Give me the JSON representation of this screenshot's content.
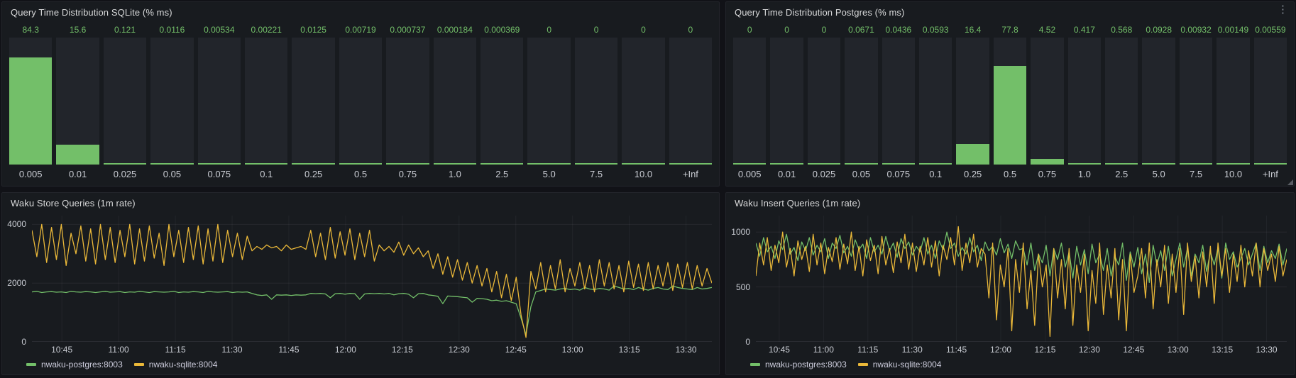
{
  "theme": {
    "dashboard_bg": "#111217",
    "panel_bg": "#181b1f",
    "bar_bg": "#22252b",
    "accent_green": "#73bf69",
    "accent_yellow": "#eab839",
    "title_text": "#d8d9da",
    "axis_text": "#c9ccd3"
  },
  "chart_data": [
    {
      "type": "bar",
      "title": "Query Time Distribution SQLite (% ms)",
      "xlabel": "",
      "ylabel": "",
      "ylim": [
        0,
        100
      ],
      "grid": false,
      "categories": [
        "0.005",
        "0.01",
        "0.025",
        "0.05",
        "0.075",
        "0.1",
        "0.25",
        "0.5",
        "0.75",
        "1.0",
        "2.5",
        "5.0",
        "7.5",
        "10.0",
        "+Inf"
      ],
      "values": [
        84.3,
        15.6,
        0.121,
        0.0116,
        0.00534,
        0.00221,
        0.0125,
        0.00719,
        0.000737,
        0.000184,
        0.000369,
        0,
        0,
        0,
        0
      ],
      "value_labels": [
        "84.3",
        "15.6",
        "0.121",
        "0.0116",
        "0.00534",
        "0.00221",
        "0.0125",
        "0.00719",
        "0.000737",
        "0.000184",
        "0.000369",
        "0",
        "0",
        "0",
        "0"
      ],
      "bar_color": "#73bf69"
    },
    {
      "type": "bar",
      "title": "Query Time Distribution Postgres (% ms)",
      "xlabel": "",
      "ylabel": "",
      "ylim": [
        0,
        100
      ],
      "grid": false,
      "categories": [
        "0.005",
        "0.01",
        "0.025",
        "0.05",
        "0.075",
        "0.1",
        "0.25",
        "0.5",
        "0.75",
        "1.0",
        "2.5",
        "5.0",
        "7.5",
        "10.0",
        "+Inf"
      ],
      "values": [
        0,
        0,
        0,
        0.0671,
        0.0436,
        0.0593,
        16.4,
        77.8,
        4.52,
        0.417,
        0.568,
        0.0928,
        0.00932,
        0.00149,
        0.00559
      ],
      "value_labels": [
        "0",
        "0",
        "0",
        "0.0671",
        "0.0436",
        "0.0593",
        "16.4",
        "77.8",
        "4.52",
        "0.417",
        "0.568",
        "0.0928",
        "0.00932",
        "0.00149",
        "0.00559"
      ],
      "bar_color": "#73bf69"
    },
    {
      "type": "line",
      "title": "Waku Store Queries (1m rate)",
      "xlabel": "",
      "ylabel": "",
      "ylim": [
        0,
        4300
      ],
      "yticks": [
        0,
        2000,
        4000
      ],
      "ytick_labels": [
        "0",
        "2000",
        "4000"
      ],
      "xticks": [
        "10:45",
        "11:00",
        "11:15",
        "11:30",
        "11:45",
        "12:00",
        "12:15",
        "12:30",
        "12:45",
        "13:00",
        "13:15",
        "13:30"
      ],
      "grid": true,
      "legend_position": "bottom-left",
      "series": [
        {
          "name": "nwaku-postgres:8003",
          "color": "#73bf69",
          "values": [
            1700,
            1720,
            1680,
            1700,
            1710,
            1690,
            1700,
            1680,
            1720,
            1700,
            1690,
            1710,
            1700,
            1680,
            1700,
            1720,
            1690,
            1700,
            1710,
            1680,
            1700,
            1690,
            1720,
            1700,
            1680,
            1710,
            1700,
            1690,
            1700,
            1720,
            1680,
            1700,
            1690,
            1710,
            1700,
            1680,
            1720,
            1700,
            1690,
            1700,
            1710,
            1680,
            1700,
            1690,
            1700,
            1650,
            1600,
            1580,
            1600,
            1450,
            1600,
            1590,
            1600,
            1580,
            1600,
            1590,
            1600,
            1650,
            1640,
            1650,
            1630,
            1500,
            1640,
            1650,
            1620,
            1650,
            1640,
            1450,
            1630,
            1650,
            1640,
            1650,
            1630,
            1650,
            1600,
            1640,
            1650,
            1620,
            1500,
            1640,
            1650,
            1600,
            1580,
            1550,
            1300,
            1560,
            1550,
            1540,
            1520,
            1500,
            1350,
            1480,
            1470,
            1450,
            1400,
            1420,
            1380,
            1400,
            1350,
            1300,
            800,
            250,
            1200,
            1700,
            1750,
            1800,
            1780,
            1760,
            1800,
            1820,
            1780,
            1800,
            1760,
            1850,
            1800,
            1780,
            1820,
            1800,
            1760,
            1900,
            1850,
            1800,
            1820,
            1780,
            1850,
            1800,
            1760,
            1820,
            1850,
            1800,
            1780,
            1900,
            1850,
            1820,
            1800,
            1780,
            1850,
            1800,
            1820,
            1850
          ]
        },
        {
          "name": "nwaku-sqlite:8004",
          "color": "#eab839",
          "values": [
            3800,
            2900,
            4000,
            2700,
            3900,
            2800,
            4000,
            2600,
            3700,
            3000,
            3950,
            2750,
            3850,
            2650,
            4000,
            2800,
            3900,
            2700,
            3800,
            2900,
            4000,
            2650,
            3850,
            2750,
            3950,
            2850,
            3700,
            2600,
            4000,
            2900,
            3800,
            2700,
            3900,
            2800,
            3950,
            2650,
            3850,
            2750,
            4000,
            2700,
            3800,
            2900,
            3700,
            2800,
            3600,
            3100,
            3250,
            3150,
            3300,
            3200,
            3250,
            3100,
            3300,
            3150,
            3200,
            3250,
            3150,
            3800,
            2900,
            3700,
            2800,
            3900,
            2850,
            3750,
            2950,
            3850,
            2800,
            3700,
            2900,
            3800,
            2750,
            3300,
            3100,
            3250,
            3050,
            3400,
            2950,
            3300,
            3000,
            3200,
            2900,
            3100,
            2500,
            3000,
            2300,
            2900,
            2200,
            2800,
            2100,
            2700,
            2000,
            2600,
            1900,
            2500,
            1700,
            2400,
            1500,
            2300,
            1400,
            2200,
            900,
            150,
            2400,
            1800,
            2700,
            1700,
            2600,
            1800,
            2800,
            1700,
            2500,
            1900,
            2700,
            1800,
            2600,
            1700,
            2800,
            1900,
            2700,
            1800,
            2600,
            1700,
            2750,
            1850,
            2650,
            1750,
            2700,
            1800,
            2600,
            1900,
            2700,
            1750,
            2650,
            1850,
            2700,
            1800,
            2600,
            1900,
            2500,
            2000
          ]
        }
      ]
    },
    {
      "type": "line",
      "title": "Waku Insert Queries (1m rate)",
      "xlabel": "",
      "ylabel": "",
      "ylim": [
        0,
        1150
      ],
      "yticks": [
        0,
        500,
        1000
      ],
      "ytick_labels": [
        "0",
        "500",
        "1000"
      ],
      "xticks": [
        "10:45",
        "11:00",
        "11:15",
        "11:30",
        "11:45",
        "12:00",
        "12:15",
        "12:30",
        "12:45",
        "13:00",
        "13:15",
        "13:30"
      ],
      "grid": true,
      "legend_position": "bottom-left",
      "series": [
        {
          "name": "nwaku-postgres:8003",
          "color": "#73bf69",
          "values": [
            900,
            780,
            950,
            820,
            870,
            760,
            920,
            840,
            980,
            800,
            860,
            740,
            910,
            830,
            950,
            790,
            880,
            820,
            940,
            760,
            900,
            850,
            970,
            810,
            870,
            780,
            930,
            840,
            890,
            760,
            950,
            820,
            880,
            800,
            960,
            830,
            900,
            770,
            940,
            850,
            910,
            790,
            870,
            820,
            950,
            800,
            880,
            760,
            920,
            840,
            1000,
            850,
            900,
            780,
            860,
            800,
            950,
            820,
            880,
            740,
            910,
            830,
            870,
            790,
            940,
            810,
            890,
            760,
            920,
            840,
            850,
            700,
            900,
            650,
            800,
            720,
            880,
            600,
            850,
            750,
            900,
            680,
            820,
            580,
            870,
            700,
            840,
            620,
            890,
            720,
            800,
            650,
            850,
            600,
            780,
            700,
            900,
            560,
            820,
            680,
            860,
            620,
            800,
            540,
            880,
            700,
            830,
            650,
            870,
            600,
            750,
            900,
            680,
            850,
            600,
            800,
            720,
            880,
            640,
            820,
            700,
            860,
            580,
            900,
            750,
            820,
            680,
            760,
            850,
            700,
            800,
            900,
            650,
            870,
            720,
            830,
            760,
            890,
            700,
            850
          ]
        },
        {
          "name": "nwaku-sqlite:8004",
          "color": "#eab839",
          "values": [
            600,
            900,
            700,
            950,
            650,
            880,
            720,
            1000,
            680,
            850,
            600,
            920,
            750,
            870,
            640,
            980,
            700,
            900,
            620,
            860,
            730,
            950,
            660,
            890,
            710,
            1000,
            650,
            870,
            600,
            930,
            740,
            880,
            620,
            960,
            700,
            850,
            630,
            910,
            720,
            980,
            660,
            900,
            640,
            870,
            700,
            950,
            680,
            920,
            600,
            880,
            750,
            950,
            700,
            1050,
            650,
            900,
            720,
            980,
            680,
            850,
            800,
            400,
            900,
            200,
            700,
            500,
            850,
            100,
            750,
            450,
            900,
            300,
            650,
            150,
            800,
            500,
            700,
            50,
            850,
            400,
            750,
            300,
            850,
            150,
            700,
            450,
            800,
            100,
            650,
            350,
            900,
            250,
            700,
            400,
            850,
            200,
            750,
            100,
            800,
            450,
            600,
            850,
            400,
            900,
            300,
            750,
            500,
            880,
            350,
            800,
            450,
            850,
            250,
            900,
            550,
            780,
            400,
            820,
            500,
            870,
            350,
            900,
            600,
            850,
            450,
            800,
            550,
            880,
            500,
            830,
            600,
            900,
            500,
            850,
            650,
            800,
            550,
            870,
            600,
            750
          ]
        }
      ]
    }
  ]
}
